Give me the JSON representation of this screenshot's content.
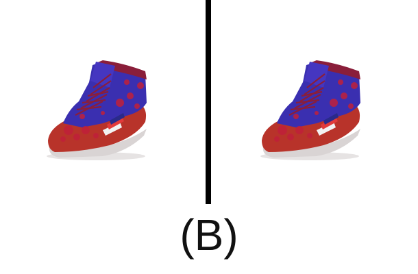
{
  "label": "(B)",
  "images": [
    {
      "name": "sneaker-left",
      "description_icon": "high-top-sneaker"
    },
    {
      "name": "sneaker-right",
      "description_icon": "high-top-sneaker"
    }
  ],
  "colors": {
    "upper_blue": "#3a2fb0",
    "pattern_red": "#c0203a",
    "sole_red": "#b8332a",
    "midsole": "#d9d4d4",
    "stripe_white": "#f2f2f2",
    "stripe_red": "#e23a3a",
    "divider": "#000000"
  }
}
